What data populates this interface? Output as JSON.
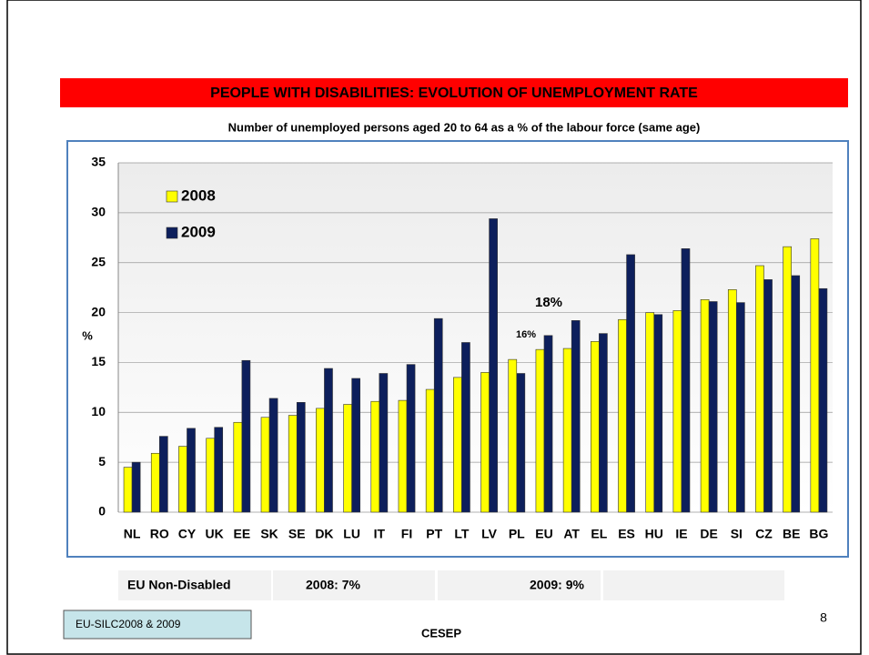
{
  "chart_data": {
    "type": "bar",
    "title": "PEOPLE WITH DISABILITIES: EVOLUTION OF UNEMPLOYMENT RATE",
    "subtitle": "Number of unemployed persons aged 20 to 64 as a % of the labour force (same age)",
    "y_label": "%",
    "categories": [
      "NL",
      "RO",
      "CY",
      "UK",
      "EE",
      "SK",
      "SE",
      "DK",
      "LU",
      "IT",
      "FI",
      "PT",
      "LT",
      "LV",
      "PL",
      "EU",
      "AT",
      "EL",
      "ES",
      "HU",
      "IE",
      "DE",
      "SI",
      "CZ",
      "BE",
      "BG"
    ],
    "series": [
      {
        "name": "2008",
        "color": "#ffff00",
        "values": [
          4.5,
          5.9,
          6.6,
          7.4,
          9.0,
          9.5,
          9.7,
          10.4,
          10.8,
          11.1,
          11.2,
          12.3,
          13.5,
          14.0,
          15.3,
          16.3,
          16.4,
          17.1,
          19.3,
          20.0,
          20.2,
          21.3,
          22.3,
          24.7,
          26.6,
          27.4
        ]
      },
      {
        "name": "2009",
        "color": "#0d1f5c",
        "values": [
          5.0,
          7.6,
          8.4,
          8.5,
          15.2,
          11.4,
          11.0,
          14.4,
          13.4,
          13.9,
          14.8,
          19.4,
          17.0,
          29.4,
          13.9,
          17.7,
          19.2,
          17.9,
          25.8,
          19.8,
          26.4,
          21.1,
          21.0,
          23.3,
          23.7,
          22.4
        ]
      }
    ],
    "ylim": [
      0,
      35
    ],
    "yticks": [
      0,
      5,
      10,
      15,
      20,
      25,
      30,
      35
    ],
    "grid": true,
    "legend": "top-left",
    "annotations": [
      "18%",
      "16%"
    ],
    "footer": {
      "row": [
        "EU Non-Disabled",
        "2008: 7%",
        "2009: 9%"
      ],
      "source": "EU-SILC2008 & 2009",
      "organization": "CESEP",
      "page": "8"
    }
  }
}
